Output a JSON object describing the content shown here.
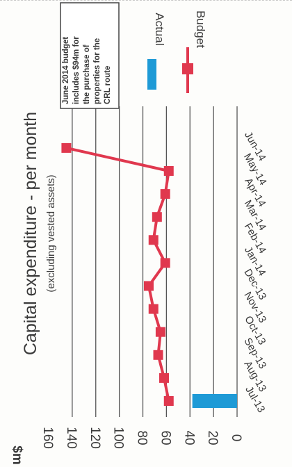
{
  "chart_data": {
    "type": "bar+line",
    "title": "Capital expenditure - per month",
    "subtitle": "(excluding vested assets)",
    "unit_label": "$m",
    "categories": [
      "Jul-13",
      "Aug-13",
      "Sep-13",
      "Oct-13",
      "Nov-13",
      "Dec-13",
      "Jan-14",
      "Feb-14",
      "Mar-14",
      "Apr-14",
      "May-14",
      "Jun-14"
    ],
    "yticks": [
      "160",
      "140",
      "120",
      "100",
      "80",
      "60",
      "40",
      "20",
      "0"
    ],
    "ylim": [
      0,
      160
    ],
    "grid": true,
    "orientation": "rotated 90° clockwise (value axis runs across the page)",
    "series": [
      {
        "name": "Actual",
        "type": "bar",
        "color": "#1e9ad6",
        "values": [
          38,
          null,
          null,
          null,
          null,
          null,
          null,
          null,
          null,
          null,
          null,
          null
        ]
      },
      {
        "name": "Budget",
        "type": "line",
        "marker": "square",
        "color": "#e0384e",
        "values": [
          58,
          62,
          67,
          65,
          71,
          75,
          61,
          71,
          68,
          61,
          58,
          145
        ]
      }
    ],
    "legend": [
      "Actual",
      "Budget"
    ],
    "annotation": [
      "June 2014  budget",
      "includes $94m for",
      "the purchase of",
      "properties for the",
      "CRL route"
    ]
  }
}
